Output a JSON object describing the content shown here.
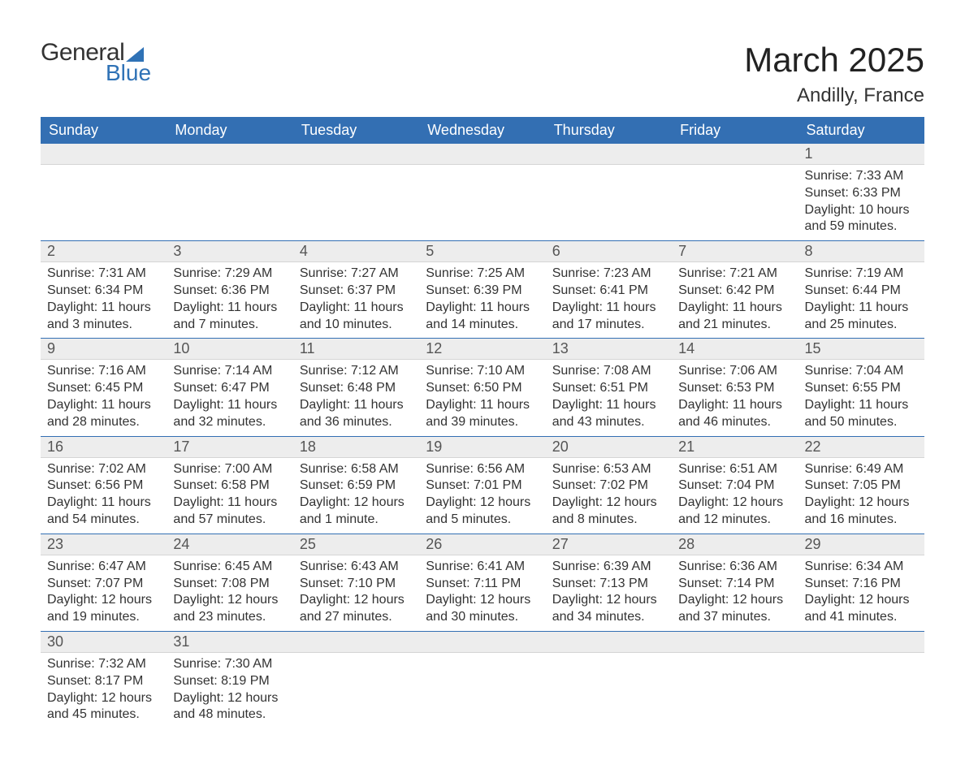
{
  "brand": {
    "word1": "General",
    "word2": "Blue",
    "accent_color": "#2f72b6"
  },
  "title": "March 2025",
  "location": "Andilly, France",
  "colors": {
    "header_bg": "#336fb3",
    "header_text": "#ffffff",
    "daynum_bg": "#ededed",
    "row_divider": "#336fb3",
    "text": "#333333"
  },
  "typography": {
    "title_fontsize": 42,
    "location_fontsize": 24,
    "weekday_fontsize": 18,
    "body_fontsize": 16
  },
  "weekdays": [
    "Sunday",
    "Monday",
    "Tuesday",
    "Wednesday",
    "Thursday",
    "Friday",
    "Saturday"
  ],
  "weeks": [
    [
      null,
      null,
      null,
      null,
      null,
      null,
      {
        "day": 1,
        "sunrise": "7:33 AM",
        "sunset": "6:33 PM",
        "daylight": "10 hours and 59 minutes."
      }
    ],
    [
      {
        "day": 2,
        "sunrise": "7:31 AM",
        "sunset": "6:34 PM",
        "daylight": "11 hours and 3 minutes."
      },
      {
        "day": 3,
        "sunrise": "7:29 AM",
        "sunset": "6:36 PM",
        "daylight": "11 hours and 7 minutes."
      },
      {
        "day": 4,
        "sunrise": "7:27 AM",
        "sunset": "6:37 PM",
        "daylight": "11 hours and 10 minutes."
      },
      {
        "day": 5,
        "sunrise": "7:25 AM",
        "sunset": "6:39 PM",
        "daylight": "11 hours and 14 minutes."
      },
      {
        "day": 6,
        "sunrise": "7:23 AM",
        "sunset": "6:41 PM",
        "daylight": "11 hours and 17 minutes."
      },
      {
        "day": 7,
        "sunrise": "7:21 AM",
        "sunset": "6:42 PM",
        "daylight": "11 hours and 21 minutes."
      },
      {
        "day": 8,
        "sunrise": "7:19 AM",
        "sunset": "6:44 PM",
        "daylight": "11 hours and 25 minutes."
      }
    ],
    [
      {
        "day": 9,
        "sunrise": "7:16 AM",
        "sunset": "6:45 PM",
        "daylight": "11 hours and 28 minutes."
      },
      {
        "day": 10,
        "sunrise": "7:14 AM",
        "sunset": "6:47 PM",
        "daylight": "11 hours and 32 minutes."
      },
      {
        "day": 11,
        "sunrise": "7:12 AM",
        "sunset": "6:48 PM",
        "daylight": "11 hours and 36 minutes."
      },
      {
        "day": 12,
        "sunrise": "7:10 AM",
        "sunset": "6:50 PM",
        "daylight": "11 hours and 39 minutes."
      },
      {
        "day": 13,
        "sunrise": "7:08 AM",
        "sunset": "6:51 PM",
        "daylight": "11 hours and 43 minutes."
      },
      {
        "day": 14,
        "sunrise": "7:06 AM",
        "sunset": "6:53 PM",
        "daylight": "11 hours and 46 minutes."
      },
      {
        "day": 15,
        "sunrise": "7:04 AM",
        "sunset": "6:55 PM",
        "daylight": "11 hours and 50 minutes."
      }
    ],
    [
      {
        "day": 16,
        "sunrise": "7:02 AM",
        "sunset": "6:56 PM",
        "daylight": "11 hours and 54 minutes."
      },
      {
        "day": 17,
        "sunrise": "7:00 AM",
        "sunset": "6:58 PM",
        "daylight": "11 hours and 57 minutes."
      },
      {
        "day": 18,
        "sunrise": "6:58 AM",
        "sunset": "6:59 PM",
        "daylight": "12 hours and 1 minute."
      },
      {
        "day": 19,
        "sunrise": "6:56 AM",
        "sunset": "7:01 PM",
        "daylight": "12 hours and 5 minutes."
      },
      {
        "day": 20,
        "sunrise": "6:53 AM",
        "sunset": "7:02 PM",
        "daylight": "12 hours and 8 minutes."
      },
      {
        "day": 21,
        "sunrise": "6:51 AM",
        "sunset": "7:04 PM",
        "daylight": "12 hours and 12 minutes."
      },
      {
        "day": 22,
        "sunrise": "6:49 AM",
        "sunset": "7:05 PM",
        "daylight": "12 hours and 16 minutes."
      }
    ],
    [
      {
        "day": 23,
        "sunrise": "6:47 AM",
        "sunset": "7:07 PM",
        "daylight": "12 hours and 19 minutes."
      },
      {
        "day": 24,
        "sunrise": "6:45 AM",
        "sunset": "7:08 PM",
        "daylight": "12 hours and 23 minutes."
      },
      {
        "day": 25,
        "sunrise": "6:43 AM",
        "sunset": "7:10 PM",
        "daylight": "12 hours and 27 minutes."
      },
      {
        "day": 26,
        "sunrise": "6:41 AM",
        "sunset": "7:11 PM",
        "daylight": "12 hours and 30 minutes."
      },
      {
        "day": 27,
        "sunrise": "6:39 AM",
        "sunset": "7:13 PM",
        "daylight": "12 hours and 34 minutes."
      },
      {
        "day": 28,
        "sunrise": "6:36 AM",
        "sunset": "7:14 PM",
        "daylight": "12 hours and 37 minutes."
      },
      {
        "day": 29,
        "sunrise": "6:34 AM",
        "sunset": "7:16 PM",
        "daylight": "12 hours and 41 minutes."
      }
    ],
    [
      {
        "day": 30,
        "sunrise": "7:32 AM",
        "sunset": "8:17 PM",
        "daylight": "12 hours and 45 minutes."
      },
      {
        "day": 31,
        "sunrise": "7:30 AM",
        "sunset": "8:19 PM",
        "daylight": "12 hours and 48 minutes."
      },
      null,
      null,
      null,
      null,
      null
    ]
  ],
  "labels": {
    "sunrise": "Sunrise: ",
    "sunset": "Sunset: ",
    "daylight": "Daylight: "
  }
}
